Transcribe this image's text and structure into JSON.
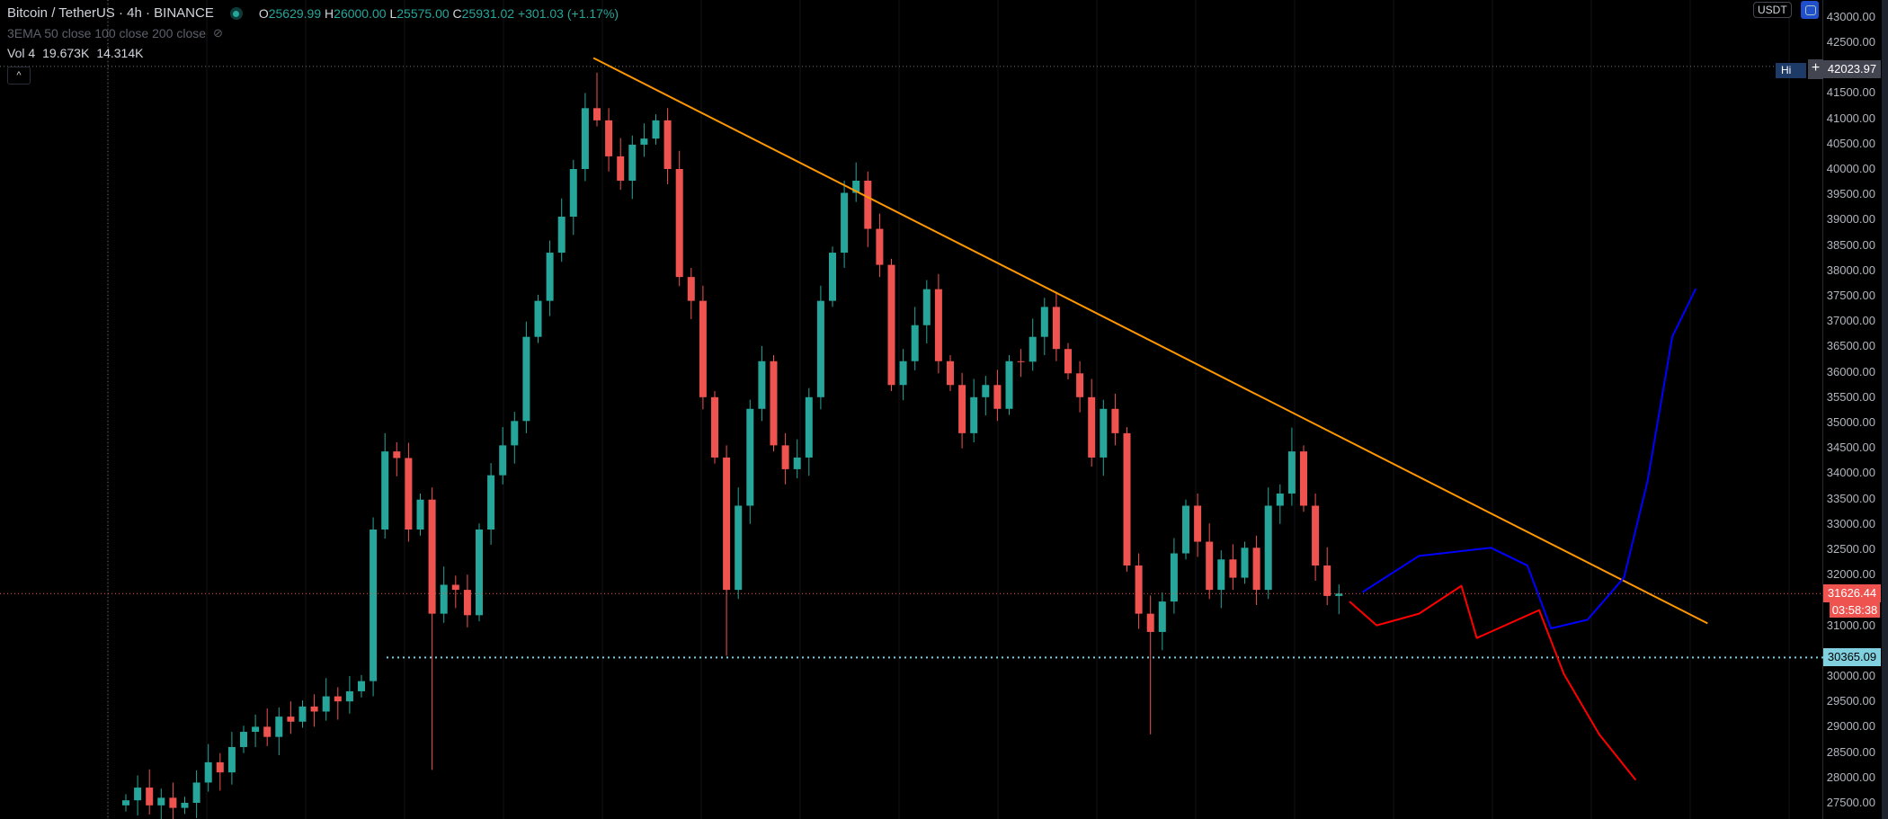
{
  "header": {
    "symbol": "Bitcoin / TetherUS",
    "interval": "4h",
    "exchange": "BINANCE",
    "sep": "·",
    "ohlc": {
      "o_label": "O",
      "o": "25629.99",
      "h_label": "H",
      "h": "26000.00",
      "l_label": "L",
      "l": "25575.00",
      "c_label": "C",
      "c": "25931.02",
      "change": "+301.03 (+1.17%)"
    },
    "indicator": "3EMA 50 close 100 close 200 close",
    "indicator_icon": "eye-crossed-icon",
    "volume": {
      "label": "Vol 4",
      "v1": "19.673K",
      "v2": "14.314K"
    },
    "collapse_icon": "chevron-up-icon"
  },
  "axis": {
    "currency": "USDT",
    "crosshair_price": "42023.97",
    "crosshair_tag": "Hi",
    "ticks": [
      "43000.00",
      "42500.00",
      "41500.00",
      "41000.00",
      "40500.00",
      "40000.00",
      "39500.00",
      "39000.00",
      "38500.00",
      "38000.00",
      "37500.00",
      "37000.00",
      "36500.00",
      "36000.00",
      "35500.00",
      "35000.00",
      "34500.00",
      "34000.00",
      "33500.00",
      "33000.00",
      "32500.00",
      "32000.00",
      "31000.00",
      "30000.00",
      "29500.00",
      "29000.00",
      "28500.00",
      "28000.00",
      "27500.00"
    ],
    "last_price": "31626.44",
    "countdown": "03:58:38",
    "marked_price": "30365.09"
  },
  "colors": {
    "up": "#26a69a",
    "down": "#ef5350",
    "trend": "#ff9800",
    "bull_path": "#0000ff",
    "bear_path": "#ff0000",
    "marked": "#80d0e0"
  },
  "chart_data": {
    "type": "candlestick",
    "ylim": [
      27300,
      43200
    ],
    "closes": [
      27550,
      27800,
      27450,
      27600,
      27400,
      27500,
      27900,
      28300,
      28100,
      28600,
      28900,
      29000,
      28800,
      29200,
      29100,
      29400,
      29300,
      29600,
      29500,
      29700,
      29900,
      32890,
      34430,
      34300,
      32890,
      33480,
      31230,
      31800,
      31700,
      31200,
      32890,
      33960,
      34550,
      35030,
      36690,
      37400,
      38350,
      39060,
      40000,
      41200,
      40960,
      40250,
      39770,
      40480,
      40600,
      40960,
      40000,
      37870,
      37400,
      35500,
      34310,
      31700,
      33360,
      35270,
      36210,
      34550,
      34080,
      34310,
      35500,
      37400,
      38350,
      39530,
      39770,
      38820,
      38110,
      35740,
      36210,
      36920,
      37630,
      36210,
      35740,
      34790,
      35500,
      35740,
      35270,
      36210,
      36200,
      36690,
      37280,
      36450,
      35970,
      35500,
      34310,
      35270,
      34790,
      32180,
      31230,
      30870,
      31470,
      32420,
      33360,
      32650,
      31700,
      32300,
      31940,
      32530,
      31700,
      33360,
      33600,
      34430,
      33360,
      32180,
      31580,
      31626
    ],
    "notable_wicks": [
      {
        "index": 26,
        "low": 28150
      },
      {
        "index": 40,
        "high": 41900
      },
      {
        "index": 51,
        "low": 30400
      },
      {
        "index": 87,
        "low": 28850
      },
      {
        "index": 99,
        "high": 34900
      }
    ],
    "trendline": {
      "from": [
        39.7,
        42190
      ],
      "to": [
        134.3,
        31040
      ]
    },
    "projection_bull": [
      [
        105,
        31655
      ],
      [
        109.8,
        32370
      ],
      [
        115.9,
        32530
      ],
      [
        119,
        32180
      ],
      [
        121,
        30940
      ],
      [
        124.1,
        31110
      ],
      [
        127.2,
        31940
      ],
      [
        129.2,
        33840
      ],
      [
        131.3,
        36690
      ],
      [
        133.3,
        37640
      ]
    ],
    "projection_bear": [
      [
        103.9,
        31470
      ],
      [
        106.2,
        31000
      ],
      [
        109.8,
        31230
      ],
      [
        113.4,
        31780
      ],
      [
        114.7,
        30750
      ],
      [
        120,
        31300
      ],
      [
        122.1,
        30040
      ],
      [
        125.1,
        28850
      ],
      [
        128.2,
        27950
      ]
    ]
  }
}
